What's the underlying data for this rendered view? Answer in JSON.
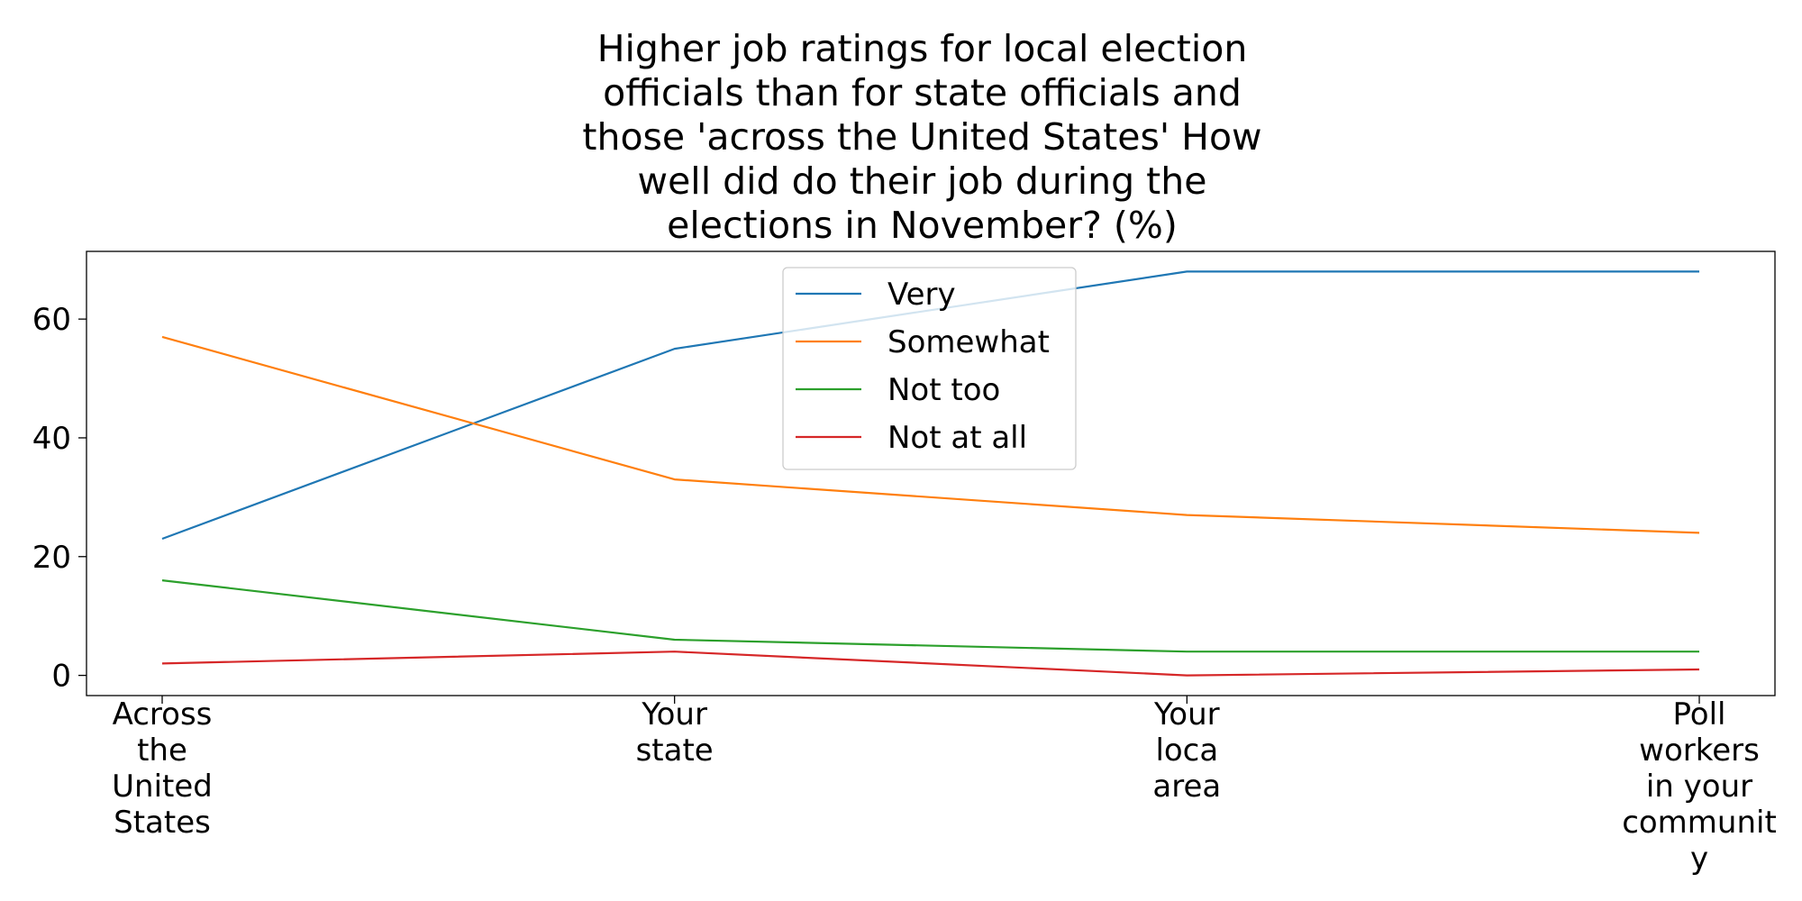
{
  "chart_data": {
    "type": "line",
    "title_lines": [
      "Higher job ratings for local election",
      "officials than for state officials and",
      "those 'across the United States' How",
      "well did do their job during the",
      "elections in November? (%)"
    ],
    "categories": [
      [
        "Across",
        "the",
        "United",
        "States"
      ],
      [
        "Your",
        "state"
      ],
      [
        "Your",
        "loca",
        "area"
      ],
      [
        "Poll",
        "workers",
        "in your",
        "communit",
        "y"
      ]
    ],
    "series": [
      {
        "name": "Very",
        "color": "#1f77b4",
        "values": [
          23,
          55,
          68,
          68
        ]
      },
      {
        "name": "Somewhat",
        "color": "#ff7f0e",
        "values": [
          57,
          33,
          27,
          24
        ]
      },
      {
        "name": "Not too",
        "color": "#2ca02c",
        "values": [
          16,
          6,
          4,
          4
        ]
      },
      {
        "name": "Not at all",
        "color": "#d62728",
        "values": [
          2,
          4,
          0,
          1
        ]
      }
    ],
    "ylim": [
      -3.4,
      71.4
    ],
    "yticks": [
      0,
      20,
      40,
      60
    ],
    "grid": false,
    "legend_position": "upper center"
  }
}
